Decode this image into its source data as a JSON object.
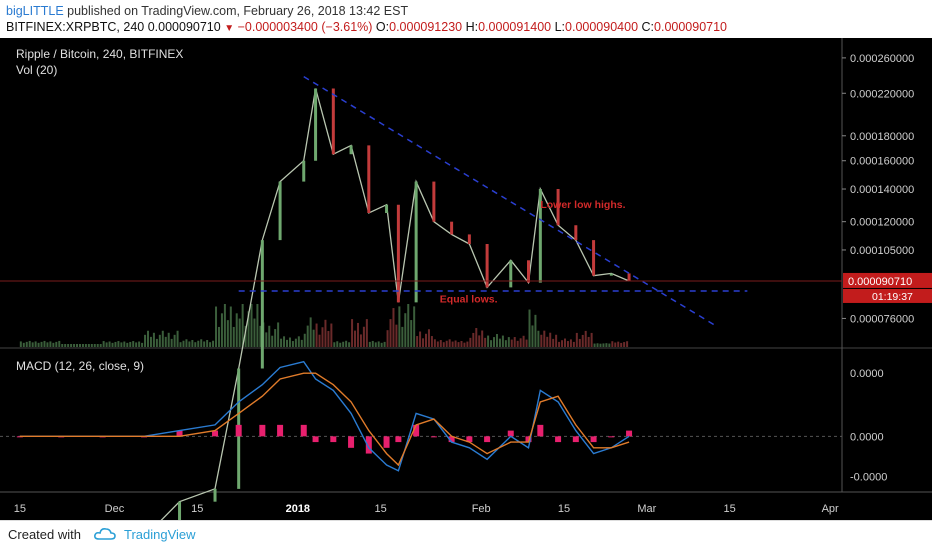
{
  "header": {
    "author": "bigLITTLE",
    "published_text": "published on TradingView.com, February 26, 2018 13:42 EST",
    "symbol": "BITFINEX:XRPBTC, 240",
    "last": "0.000090710",
    "change": "−0.000003400 (−3.61%)",
    "open_label": "O:",
    "open": "0.000091230",
    "high_label": "H:",
    "high": "0.000091400",
    "low_label": "L:",
    "low": "0.000090400",
    "close_label": "C:",
    "close": "0.000090710"
  },
  "footer": {
    "created_with": "Created with",
    "brand": "TradingView"
  },
  "colors": {
    "background": "#000000",
    "up": "#6fa86f",
    "down": "#c23b3b",
    "trendline": "#2a3fd1",
    "macd_hist": "#e8206e",
    "macd_line": "#2a7bd1",
    "signal_line": "#e07b2a",
    "price_badge": "#c21c1c"
  },
  "chart_data": [
    {
      "type": "line",
      "title": "Ripple / Bitcoin, 240, BITFINEX",
      "volume_label": "Vol (20)",
      "y_scale": "log",
      "yticks": [
        "0.000260000",
        "0.000220000",
        "0.000180000",
        "0.000160000",
        "0.000140000",
        "0.000120000",
        "0.000105000",
        "0.000076000"
      ],
      "xticks": [
        "15",
        "Dec",
        "15",
        "2018",
        "15",
        "Feb",
        "15",
        "Mar",
        "15",
        "Apr"
      ],
      "last_price_label": "0.000090710",
      "countdown_label": "01:19:37",
      "annotations": [
        "Lower low highs.",
        "Equal lows."
      ],
      "x": [
        "2017-11-15",
        "2017-11-22",
        "2017-11-29",
        "2017-12-06",
        "2017-12-12",
        "2017-12-18",
        "2017-12-22",
        "2017-12-26",
        "2017-12-29",
        "2018-01-02",
        "2018-01-04",
        "2018-01-07",
        "2018-01-10",
        "2018-01-13",
        "2018-01-16",
        "2018-01-18",
        "2018-01-21",
        "2018-01-24",
        "2018-01-27",
        "2018-01-30",
        "2018-02-02",
        "2018-02-06",
        "2018-02-09",
        "2018-02-11",
        "2018-02-14",
        "2018-02-17",
        "2018-02-20",
        "2018-02-23",
        "2018-02-26"
      ],
      "values": [
        2.5e-05,
        2.6e-05,
        2.6e-05,
        2.7e-05,
        3.2e-05,
        3.4e-05,
        6e-05,
        0.00011,
        0.000145,
        0.00016,
        0.000225,
        0.000165,
        0.000172,
        0.000125,
        0.00013,
        8.2e-05,
        0.000145,
        0.00012,
        0.000113,
        0.000108,
        8.8e-05,
        0.0001,
        9e-05,
        0.00014,
        0.000118,
        0.00011,
        9.3e-05,
        9.4e-05,
        9.07e-05
      ]
    },
    {
      "type": "line",
      "title": "MACD (12, 26, close, 9)",
      "yticks": [
        "0.0000",
        "0.0000",
        "-0.0000"
      ],
      "series": [
        {
          "name": "MACD",
          "values": [
            0.0,
            0.0,
            0.0,
            0.0,
            1e-06,
            2e-06,
            6e-06,
            9e-06,
            1.2e-05,
            1.3e-05,
            1e-05,
            8e-06,
            4e-06,
            -2e-06,
            -5e-06,
            -6e-06,
            4e-06,
            3e-06,
            -1e-06,
            -2e-06,
            -4e-06,
            0.0,
            -2e-06,
            8e-06,
            6e-06,
            1e-06,
            -3e-06,
            -2e-06,
            0.0
          ]
        },
        {
          "name": "Signal",
          "values": [
            0.0,
            0.0,
            0.0,
            0.0,
            0.0,
            1e-06,
            4e-06,
            7e-06,
            1e-05,
            1.1e-05,
            1.1e-05,
            9e-06,
            6e-06,
            1e-06,
            -3e-06,
            -5e-06,
            2e-06,
            3e-06,
            0.0,
            -1e-06,
            -3e-06,
            -1e-06,
            -1e-06,
            6e-06,
            7e-06,
            2e-06,
            -2e-06,
            -2e-06,
            -1e-06
          ]
        }
      ],
      "histogram": [
        0.0,
        0.0,
        0.0,
        0.0,
        1e-06,
        1e-06,
        2e-06,
        2e-06,
        2e-06,
        2e-06,
        -1e-06,
        -1e-06,
        -2e-06,
        -3e-06,
        -2e-06,
        -1e-06,
        2e-06,
        0.0,
        -1e-06,
        -1e-06,
        -1e-06,
        1e-06,
        -1e-06,
        2e-06,
        -1e-06,
        -1e-06,
        -1e-06,
        0.0,
        1e-06
      ]
    }
  ]
}
